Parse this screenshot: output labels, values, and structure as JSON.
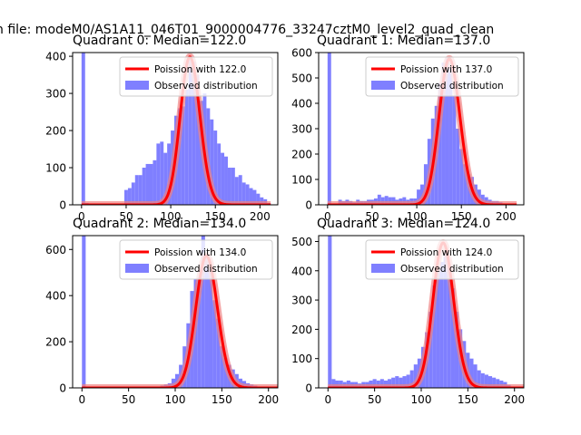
{
  "figure": {
    "suptitle": "n file: modeM0/AS1A11_046T01_9000004776_33247cztM0_level2_quad_clean"
  },
  "colors": {
    "hist": "#7f7fff",
    "fit": "#ff0000",
    "fit_glow": "#f08080"
  },
  "chart_data": [
    {
      "type": "bar",
      "title": "Quadrant 0: Median=122.0",
      "median": 122.0,
      "legend": [
        "Poission with 122.0",
        "Observed distribution"
      ],
      "legend_position": "top-right",
      "xlim": [
        -10,
        220
      ],
      "ylim": [
        0,
        410
      ],
      "xticks": [
        0,
        50,
        100,
        150,
        200
      ],
      "yticks": [
        0,
        100,
        200,
        300,
        400
      ],
      "bin_width": 4,
      "bin_starts": [
        0,
        4,
        48,
        52,
        56,
        60,
        64,
        68,
        72,
        76,
        80,
        84,
        88,
        92,
        96,
        100,
        104,
        108,
        112,
        116,
        120,
        124,
        128,
        132,
        136,
        140,
        144,
        148,
        152,
        156,
        160,
        164,
        168,
        172,
        176,
        180,
        184,
        188,
        192,
        196,
        200,
        204,
        208
      ],
      "counts": [
        410,
        5,
        40,
        45,
        60,
        80,
        80,
        100,
        110,
        110,
        120,
        165,
        170,
        140,
        165,
        200,
        240,
        260,
        265,
        310,
        400,
        385,
        350,
        280,
        300,
        260,
        230,
        200,
        165,
        140,
        130,
        100,
        100,
        75,
        80,
        60,
        55,
        45,
        40,
        30,
        20,
        15,
        5
      ],
      "poisson_lambda": 122.0,
      "poisson_scale": 398
    },
    {
      "type": "bar",
      "title": "Quadrant 1: Median=137.0",
      "median": 137.0,
      "legend": [
        "Poission with 137.0",
        "Observed distribution"
      ],
      "legend_position": "top-right",
      "xlim": [
        -10,
        220
      ],
      "ylim": [
        0,
        600
      ],
      "xticks": [
        0,
        50,
        100,
        150,
        200
      ],
      "yticks": [
        0,
        100,
        200,
        300,
        400,
        500,
        600
      ],
      "bin_width": 4,
      "bin_starts": [
        0,
        4,
        12,
        16,
        20,
        24,
        28,
        32,
        36,
        40,
        44,
        48,
        52,
        56,
        60,
        64,
        68,
        72,
        76,
        80,
        84,
        88,
        92,
        96,
        100,
        104,
        108,
        112,
        116,
        120,
        124,
        128,
        132,
        136,
        140,
        144,
        148,
        152,
        156,
        160,
        164,
        168,
        172,
        176,
        180,
        184,
        188,
        192,
        196,
        200,
        204
      ],
      "counts": [
        600,
        5,
        20,
        15,
        20,
        15,
        10,
        20,
        15,
        15,
        20,
        20,
        25,
        40,
        30,
        35,
        30,
        30,
        20,
        25,
        30,
        20,
        25,
        25,
        60,
        80,
        160,
        260,
        340,
        390,
        480,
        560,
        580,
        540,
        430,
        300,
        220,
        160,
        120,
        110,
        80,
        60,
        40,
        30,
        20,
        15,
        15,
        10,
        5,
        5,
        5
      ],
      "poisson_lambda": 137.0,
      "poisson_scale": 575
    },
    {
      "type": "bar",
      "title": "Quadrant 2: Median=134.0",
      "median": 134.0,
      "legend": [
        "Poission with 134.0",
        "Observed distribution"
      ],
      "legend_position": "top-right",
      "xlim": [
        -10,
        210
      ],
      "ylim": [
        0,
        660
      ],
      "xticks": [
        0,
        50,
        100,
        150,
        200
      ],
      "yticks": [
        0,
        200,
        400,
        600
      ],
      "bin_width": 4,
      "bin_starts": [
        0,
        4,
        76,
        80,
        84,
        88,
        92,
        96,
        100,
        104,
        108,
        112,
        116,
        120,
        124,
        128,
        132,
        136,
        140,
        144,
        148,
        152,
        156,
        160,
        164,
        168,
        172,
        176,
        180,
        184,
        188,
        192,
        196
      ],
      "counts": [
        660,
        5,
        5,
        5,
        10,
        15,
        20,
        40,
        60,
        100,
        180,
        280,
        420,
        470,
        480,
        660,
        570,
        510,
        380,
        300,
        180,
        130,
        100,
        80,
        60,
        40,
        30,
        20,
        15,
        10,
        5,
        5,
        5
      ],
      "poisson_lambda": 134.0,
      "poisson_scale": 572
    },
    {
      "type": "bar",
      "title": "Quadrant 3: Median=124.0",
      "median": 124.0,
      "legend": [
        "Poission with 124.0",
        "Observed distribution"
      ],
      "legend_position": "top-right",
      "xlim": [
        -10,
        210
      ],
      "ylim": [
        0,
        520
      ],
      "xticks": [
        0,
        50,
        100,
        150,
        200
      ],
      "yticks": [
        0,
        100,
        200,
        300,
        400,
        500
      ],
      "bin_width": 4,
      "bin_starts": [
        0,
        4,
        8,
        12,
        16,
        20,
        24,
        28,
        32,
        36,
        40,
        44,
        48,
        52,
        56,
        60,
        64,
        68,
        72,
        76,
        80,
        84,
        88,
        92,
        96,
        100,
        104,
        108,
        112,
        116,
        120,
        124,
        128,
        132,
        136,
        140,
        144,
        148,
        152,
        156,
        160,
        164,
        168,
        172,
        176,
        180,
        184,
        188,
        192
      ],
      "counts": [
        520,
        30,
        25,
        25,
        20,
        25,
        20,
        20,
        15,
        20,
        20,
        25,
        30,
        25,
        30,
        25,
        30,
        35,
        40,
        35,
        40,
        45,
        60,
        80,
        100,
        140,
        190,
        260,
        350,
        400,
        430,
        460,
        420,
        340,
        260,
        200,
        160,
        120,
        100,
        80,
        60,
        50,
        45,
        40,
        35,
        30,
        25,
        20,
        10
      ],
      "poisson_lambda": 124.0,
      "poisson_scale": 495
    }
  ]
}
